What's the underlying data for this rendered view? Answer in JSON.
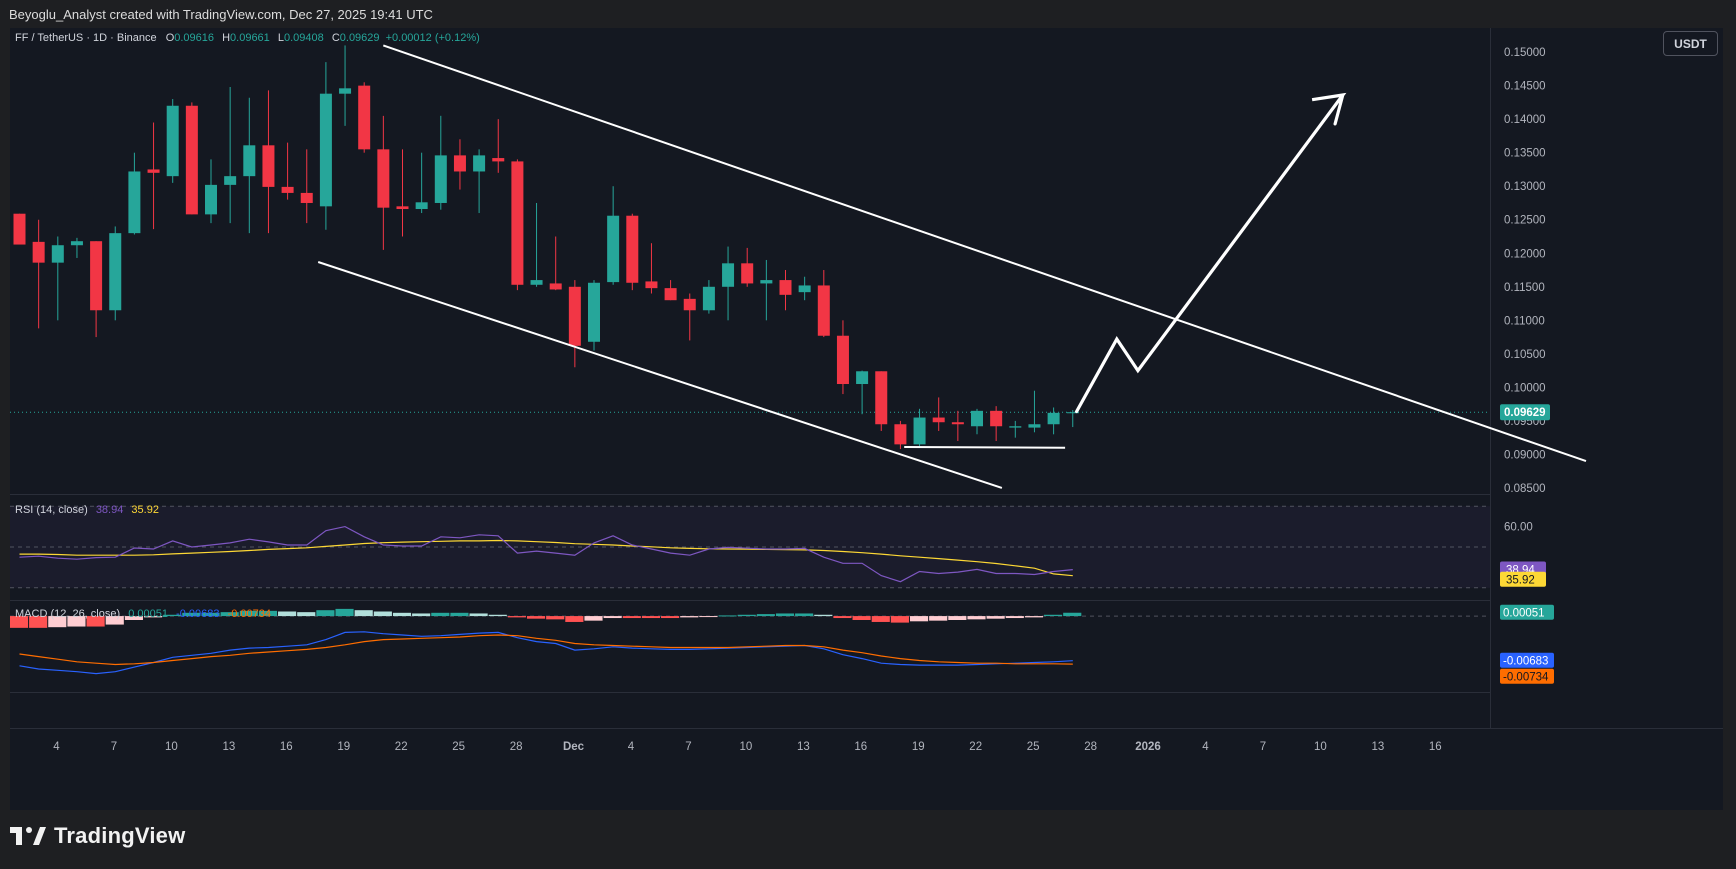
{
  "header_credit": "Beyoglu_Analyst created with TradingView.com, Dec 27, 2025 19:41 UTC",
  "brand": "TradingView",
  "currency_button": "USDT",
  "legend": {
    "symbol": "FF / TetherUS · 1D · Binance",
    "o_label": "O",
    "o_value": "0.09616",
    "h_label": "H",
    "h_value": "0.09661",
    "l_label": "L",
    "l_value": "0.09408",
    "c_label": "C",
    "c_value": "0.09629",
    "change": "+0.00012 (+0.12%)"
  },
  "colors": {
    "up": "#26a69a",
    "down": "#f23645",
    "rsi": "#7e57c2",
    "rsi_ma": "#fdd835",
    "macd": "#2962ff",
    "signal": "#ff6d00",
    "annotation": "#ffffff"
  },
  "chart_data": [
    {
      "type": "candlestick",
      "title": "FF / TetherUS · 1D · Binance",
      "ylim": [
        0.0835,
        0.153
      ],
      "y_ticks": [
        "0.15000",
        "0.14500",
        "0.14000",
        "0.13500",
        "0.13000",
        "0.12500",
        "0.12000",
        "0.11500",
        "0.11000",
        "0.10500",
        "0.10000",
        "0.09500",
        "0.09000",
        "0.08500"
      ],
      "x_ticks": [
        "4",
        "7",
        "10",
        "13",
        "16",
        "19",
        "22",
        "25",
        "28",
        "Dec",
        "4",
        "7",
        "10",
        "13",
        "16",
        "19",
        "22",
        "25",
        "28",
        "2026",
        "4",
        "7",
        "10",
        "13",
        "16"
      ],
      "last_price_label": "0.09629",
      "candles": [
        {
          "o": 0.1259,
          "h": 0.1259,
          "l": 0.1213,
          "c": 0.1213
        },
        {
          "o": 0.1217,
          "h": 0.125,
          "l": 0.1088,
          "c": 0.1186
        },
        {
          "o": 0.1186,
          "h": 0.1225,
          "l": 0.11,
          "c": 0.1212
        },
        {
          "o": 0.1212,
          "h": 0.1223,
          "l": 0.1193,
          "c": 0.1218
        },
        {
          "o": 0.1218,
          "h": 0.1218,
          "l": 0.1075,
          "c": 0.1115
        },
        {
          "o": 0.1115,
          "h": 0.124,
          "l": 0.11,
          "c": 0.123
        },
        {
          "o": 0.123,
          "h": 0.135,
          "l": 0.1228,
          "c": 0.1322
        },
        {
          "o": 0.1325,
          "h": 0.1395,
          "l": 0.1236,
          "c": 0.132
        },
        {
          "o": 0.1315,
          "h": 0.143,
          "l": 0.1305,
          "c": 0.142
        },
        {
          "o": 0.142,
          "h": 0.1425,
          "l": 0.1258,
          "c": 0.1258
        },
        {
          "o": 0.1258,
          "h": 0.134,
          "l": 0.1245,
          "c": 0.1302
        },
        {
          "o": 0.1302,
          "h": 0.1448,
          "l": 0.1245,
          "c": 0.1315
        },
        {
          "o": 0.1315,
          "h": 0.1432,
          "l": 0.123,
          "c": 0.1361
        },
        {
          "o": 0.1361,
          "h": 0.1443,
          "l": 0.123,
          "c": 0.1299
        },
        {
          "o": 0.1299,
          "h": 0.1365,
          "l": 0.128,
          "c": 0.129
        },
        {
          "o": 0.129,
          "h": 0.1355,
          "l": 0.1245,
          "c": 0.1275
        },
        {
          "o": 0.127,
          "h": 0.1485,
          "l": 0.1235,
          "c": 0.1438
        },
        {
          "o": 0.1438,
          "h": 0.151,
          "l": 0.139,
          "c": 0.1446
        },
        {
          "o": 0.145,
          "h": 0.1455,
          "l": 0.135,
          "c": 0.1355
        },
        {
          "o": 0.1355,
          "h": 0.1405,
          "l": 0.1205,
          "c": 0.1268
        },
        {
          "o": 0.127,
          "h": 0.1355,
          "l": 0.1225,
          "c": 0.1266
        },
        {
          "o": 0.1266,
          "h": 0.135,
          "l": 0.126,
          "c": 0.1276
        },
        {
          "o": 0.1275,
          "h": 0.1405,
          "l": 0.1265,
          "c": 0.1346
        },
        {
          "o": 0.1346,
          "h": 0.137,
          "l": 0.1295,
          "c": 0.1322
        },
        {
          "o": 0.1322,
          "h": 0.1355,
          "l": 0.126,
          "c": 0.1346
        },
        {
          "o": 0.1342,
          "h": 0.14,
          "l": 0.132,
          "c": 0.1337
        },
        {
          "o": 0.1337,
          "h": 0.134,
          "l": 0.1145,
          "c": 0.1153
        },
        {
          "o": 0.1153,
          "h": 0.1275,
          "l": 0.115,
          "c": 0.116
        },
        {
          "o": 0.1155,
          "h": 0.1225,
          "l": 0.1145,
          "c": 0.1146
        },
        {
          "o": 0.115,
          "h": 0.116,
          "l": 0.103,
          "c": 0.1062
        },
        {
          "o": 0.1068,
          "h": 0.116,
          "l": 0.1055,
          "c": 0.1156
        },
        {
          "o": 0.1157,
          "h": 0.13,
          "l": 0.1153,
          "c": 0.1256
        },
        {
          "o": 0.1256,
          "h": 0.1259,
          "l": 0.1145,
          "c": 0.1156
        },
        {
          "o": 0.1158,
          "h": 0.1215,
          "l": 0.114,
          "c": 0.1148
        },
        {
          "o": 0.1148,
          "h": 0.116,
          "l": 0.113,
          "c": 0.113
        },
        {
          "o": 0.1132,
          "h": 0.114,
          "l": 0.107,
          "c": 0.1115
        },
        {
          "o": 0.1115,
          "h": 0.116,
          "l": 0.111,
          "c": 0.115
        },
        {
          "o": 0.115,
          "h": 0.121,
          "l": 0.11,
          "c": 0.1185
        },
        {
          "o": 0.1185,
          "h": 0.1208,
          "l": 0.115,
          "c": 0.1155
        },
        {
          "o": 0.1155,
          "h": 0.119,
          "l": 0.11,
          "c": 0.116
        },
        {
          "o": 0.116,
          "h": 0.1175,
          "l": 0.1115,
          "c": 0.1138
        },
        {
          "o": 0.1142,
          "h": 0.1165,
          "l": 0.113,
          "c": 0.1152
        },
        {
          "o": 0.1152,
          "h": 0.1175,
          "l": 0.1075,
          "c": 0.1077
        },
        {
          "o": 0.1077,
          "h": 0.11,
          "l": 0.099,
          "c": 0.1005
        },
        {
          "o": 0.1005,
          "h": 0.1025,
          "l": 0.096,
          "c": 0.1024
        },
        {
          "o": 0.1024,
          "h": 0.1024,
          "l": 0.0935,
          "c": 0.0945
        },
        {
          "o": 0.0945,
          "h": 0.095,
          "l": 0.0908,
          "c": 0.0915
        },
        {
          "o": 0.0915,
          "h": 0.0968,
          "l": 0.0912,
          "c": 0.0955
        },
        {
          "o": 0.0955,
          "h": 0.0985,
          "l": 0.0935,
          "c": 0.0948
        },
        {
          "o": 0.0948,
          "h": 0.0965,
          "l": 0.092,
          "c": 0.0945
        },
        {
          "o": 0.0942,
          "h": 0.0968,
          "l": 0.093,
          "c": 0.0965
        },
        {
          "o": 0.0965,
          "h": 0.0972,
          "l": 0.092,
          "c": 0.0942
        },
        {
          "o": 0.094,
          "h": 0.095,
          "l": 0.0925,
          "c": 0.0942
        },
        {
          "o": 0.094,
          "h": 0.0995,
          "l": 0.0933,
          "c": 0.0945
        },
        {
          "o": 0.0945,
          "h": 0.097,
          "l": 0.093,
          "c": 0.0962
        },
        {
          "o": 0.09616,
          "h": 0.09661,
          "l": 0.09408,
          "c": 0.09629
        }
      ]
    },
    {
      "type": "line",
      "title": "RSI (14, close)",
      "ylim": [
        25,
        75
      ],
      "series": [
        {
          "name": "RSI",
          "label": "38.94",
          "values": [
            45,
            45.5,
            44.5,
            44,
            44.8,
            45,
            49.5,
            49,
            53,
            50,
            51,
            52,
            53.8,
            52.5,
            51,
            51,
            58,
            60,
            55,
            51,
            50.5,
            50.5,
            55,
            54.5,
            56,
            55.5,
            47,
            48,
            47,
            46,
            52,
            55.5,
            51,
            49,
            47,
            46,
            49,
            49.8,
            49.4,
            49,
            49,
            49.3,
            45,
            42,
            42,
            36,
            33,
            38,
            37,
            37.7,
            39,
            37,
            37,
            36.5,
            38,
            38.94
          ]
        },
        {
          "name": "RSI MA",
          "label": "35.92",
          "values": [
            46.5,
            46.5,
            46.3,
            46,
            46,
            46,
            46,
            46.2,
            46.6,
            47,
            47.4,
            47.8,
            48.3,
            48.8,
            49.2,
            49.6,
            50.3,
            51,
            51.7,
            52.1,
            52.4,
            52.6,
            52.8,
            53,
            53,
            53.2,
            53,
            52.6,
            52.2,
            51.6,
            51.3,
            51,
            50.5,
            50.1,
            49.6,
            49.3,
            49.1,
            49,
            48.9,
            48.8,
            48.7,
            48.6,
            48.3,
            47.8,
            47.2,
            46.5,
            45.7,
            45,
            44.3,
            43.6,
            42.8,
            41.9,
            40.8,
            39.6,
            36.8,
            35.92
          ]
        }
      ]
    },
    {
      "type": "bar",
      "title": "MACD (12, 26, close)",
      "legend_values": [
        "0.00051",
        "-0.00683",
        "-0.00734"
      ],
      "ylim": [
        -0.011,
        0.002
      ],
      "series": [
        {
          "name": "Histogram",
          "label": "0.00051",
          "values": [
            -0.0018,
            -0.0018,
            -0.0017,
            -0.0016,
            -0.0016,
            -0.0013,
            -0.0006,
            -0.0002,
            0.0002,
            0.0005,
            0.0005,
            0.0006,
            0.0008,
            0.0008,
            0.0007,
            0.0006,
            0.0009,
            0.0011,
            0.0009,
            0.0007,
            0.0005,
            0.0004,
            0.0005,
            0.0005,
            0.0004,
            0.0002,
            -0.0002,
            -0.0004,
            -0.0005,
            -0.0009,
            -0.0007,
            -0.0003,
            -0.0003,
            -0.0003,
            -0.0003,
            -0.0002,
            -0.0001,
            0.0001,
            0.0002,
            0.0003,
            0.0004,
            0.0004,
            0.0002,
            -0.0003,
            -0.0006,
            -0.0009,
            -0.001,
            -0.0008,
            -0.0007,
            -0.0006,
            -0.0005,
            -0.0004,
            -0.0003,
            -0.0002,
            0.0002,
            0.00051
          ]
        },
        {
          "name": "MACD",
          "label": "-0.00683",
          "values": [
            -0.0076,
            -0.0081,
            -0.0083,
            -0.0085,
            -0.0088,
            -0.0085,
            -0.0078,
            -0.0071,
            -0.0063,
            -0.006,
            -0.0057,
            -0.0052,
            -0.0049,
            -0.0048,
            -0.0046,
            -0.0044,
            -0.0036,
            -0.0025,
            -0.0024,
            -0.0027,
            -0.0029,
            -0.0031,
            -0.003,
            -0.0028,
            -0.0026,
            -0.0025,
            -0.0033,
            -0.0039,
            -0.0042,
            -0.0052,
            -0.005,
            -0.0047,
            -0.0049,
            -0.005,
            -0.0051,
            -0.0051,
            -0.005,
            -0.0049,
            -0.0048,
            -0.0047,
            -0.0046,
            -0.0045,
            -0.005,
            -0.0059,
            -0.0065,
            -0.0072,
            -0.0074,
            -0.0075,
            -0.0075,
            -0.0075,
            -0.0074,
            -0.0073,
            -0.0072,
            -0.0071,
            -0.007,
            -0.00683
          ]
        },
        {
          "name": "Signal",
          "label": "-0.00734",
          "values": [
            -0.0058,
            -0.0062,
            -0.0066,
            -0.007,
            -0.0072,
            -0.0074,
            -0.0073,
            -0.0071,
            -0.0068,
            -0.0065,
            -0.0062,
            -0.006,
            -0.0057,
            -0.0055,
            -0.0053,
            -0.0051,
            -0.0048,
            -0.0044,
            -0.0039,
            -0.0036,
            -0.0035,
            -0.0034,
            -0.0033,
            -0.0032,
            -0.003,
            -0.0029,
            -0.003,
            -0.0034,
            -0.0037,
            -0.0042,
            -0.0044,
            -0.0045,
            -0.0046,
            -0.0047,
            -0.0048,
            -0.0048,
            -0.0048,
            -0.0048,
            -0.0047,
            -0.0046,
            -0.0045,
            -0.0045,
            -0.0047,
            -0.0052,
            -0.0056,
            -0.0061,
            -0.0065,
            -0.0068,
            -0.007,
            -0.0071,
            -0.0072,
            -0.0072,
            -0.0073,
            -0.0073,
            -0.0073,
            -0.00734
          ]
        }
      ]
    }
  ],
  "annotations": {
    "channel_upper": [
      {
        "x": 19,
        "y": 0.151
      },
      {
        "x": 81.8,
        "y": 0.089
      }
    ],
    "channel_lower": [
      {
        "x": 15.6,
        "y": 0.1187
      },
      {
        "x": 51.3,
        "y": 0.085
      }
    ],
    "support_line": [
      {
        "x": 46.2,
        "y": 0.0911
      },
      {
        "x": 54.6,
        "y": 0.091
      }
    ],
    "projection": [
      {
        "x": 55.2,
        "y": 0.0964
      },
      {
        "x": 57.3,
        "y": 0.1072
      },
      {
        "x": 58.4,
        "y": 0.1025
      },
      {
        "x": 69.1,
        "y": 0.1436
      },
      {
        "x": 67.5,
        "y": 0.1429
      },
      {
        "x": 69.1,
        "y": 0.1436
      },
      {
        "x": 68.7,
        "y": 0.1393
      }
    ]
  }
}
